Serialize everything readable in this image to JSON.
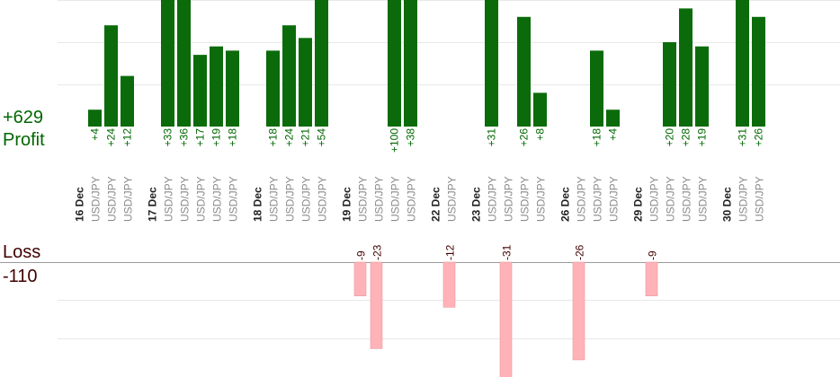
{
  "summary": {
    "profit_total": "+629",
    "profit_label": "Profit",
    "loss_label": "Loss",
    "loss_total": "-110"
  },
  "colors": {
    "profit_bar": "#0b6b0b",
    "profit_text": "#006600",
    "loss_bar": "#ffb3b8",
    "loss_text": "#400000",
    "date_text": "#222222",
    "pair_text": "#8a8a8a",
    "grid": "#e8e8e8",
    "axis": "#9a9a9a"
  },
  "chart_data": {
    "type": "bar",
    "title": "",
    "profit_ylim": [
      0,
      30
    ],
    "loss_ylim": [
      -24,
      0
    ],
    "days": [
      {
        "date": "16 Dec",
        "trades": [
          {
            "pair": "USD/JPY",
            "value": 4,
            "label": "+4"
          },
          {
            "pair": "USD/JPY",
            "value": 24,
            "label": "+24"
          },
          {
            "pair": "USD/JPY",
            "value": 12,
            "label": "+12"
          }
        ]
      },
      {
        "date": "17 Dec",
        "trades": [
          {
            "pair": "USD/JPY",
            "value": 33,
            "label": "+33"
          },
          {
            "pair": "USD/JPY",
            "value": 36,
            "label": "+36"
          },
          {
            "pair": "USD/JPY",
            "value": 17,
            "label": "+17"
          },
          {
            "pair": "USD/JPY",
            "value": 19,
            "label": "+19"
          },
          {
            "pair": "USD/JPY",
            "value": 18,
            "label": "+18"
          }
        ]
      },
      {
        "date": "18 Dec",
        "trades": [
          {
            "pair": "USD/JPY",
            "value": 18,
            "label": "+18"
          },
          {
            "pair": "USD/JPY",
            "value": 24,
            "label": "+24"
          },
          {
            "pair": "USD/JPY",
            "value": 21,
            "label": "+21"
          },
          {
            "pair": "USD/JPY",
            "value": 54,
            "label": "+54"
          }
        ]
      },
      {
        "date": "19 Dec",
        "trades": [
          {
            "pair": "USD/JPY",
            "value": -9,
            "label": "-9"
          },
          {
            "pair": "USD/JPY",
            "value": -23,
            "label": "-23"
          },
          {
            "pair": "USD/JPY",
            "value": 100,
            "label": "+100"
          },
          {
            "pair": "USD/JPY",
            "value": 38,
            "label": "+38"
          }
        ]
      },
      {
        "date": "22 Dec",
        "trades": [
          {
            "pair": "USD/JPY",
            "value": -12,
            "label": "-12"
          }
        ]
      },
      {
        "date": "23 Dec",
        "trades": [
          {
            "pair": "USD/JPY",
            "value": 31,
            "label": "+31"
          },
          {
            "pair": "USD/JPY",
            "value": -31,
            "label": "-31"
          },
          {
            "pair": "USD/JPY",
            "value": 26,
            "label": "+26"
          },
          {
            "pair": "USD/JPY",
            "value": 8,
            "label": "+8"
          }
        ]
      },
      {
        "date": "26 Dec",
        "trades": [
          {
            "pair": "USD/JPY",
            "value": -26,
            "label": "-26"
          },
          {
            "pair": "USD/JPY",
            "value": 18,
            "label": "+18"
          },
          {
            "pair": "USD/JPY",
            "value": 4,
            "label": "+4"
          }
        ]
      },
      {
        "date": "29 Dec",
        "trades": [
          {
            "pair": "USD/JPY",
            "value": -9,
            "label": "-9"
          },
          {
            "pair": "USD/JPY",
            "value": 20,
            "label": "+20"
          },
          {
            "pair": "USD/JPY",
            "value": 28,
            "label": "+28"
          },
          {
            "pair": "USD/JPY",
            "value": 19,
            "label": "+19"
          }
        ]
      },
      {
        "date": "30 Dec",
        "trades": [
          {
            "pair": "USD/JPY",
            "value": 31,
            "label": "+31"
          },
          {
            "pair": "USD/JPY",
            "value": 26,
            "label": "+26"
          }
        ]
      }
    ]
  }
}
